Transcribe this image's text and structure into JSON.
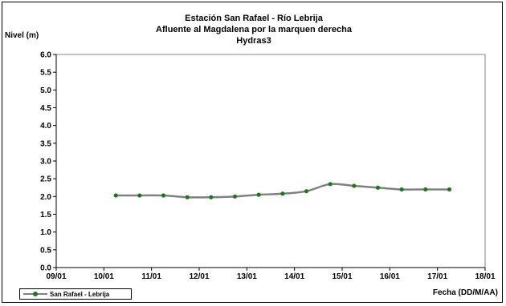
{
  "chart_data": {
    "type": "line",
    "title": "Estación San Rafael - Río Lebrija",
    "subtitle": "Afluente al Magdalena por la marquen derecha",
    "subtitle2": "Hydras3",
    "ylabel": "Nivel (m)",
    "xlabel": "Fecha (DD/M/AA)",
    "ylim": [
      0,
      6
    ],
    "y_ticks": [
      "0.0",
      "0.5",
      "1.0",
      "1.5",
      "2.0",
      "2.5",
      "3.0",
      "3.5",
      "4.0",
      "4.5",
      "5.0",
      "5.5",
      "6.0"
    ],
    "x_ticks": [
      "09/01",
      "10/01",
      "11/01",
      "12/01",
      "13/01",
      "14/01",
      "15/01",
      "16/01",
      "17/01",
      "18/01"
    ],
    "x_range_days": [
      0,
      9
    ],
    "grid": false,
    "legend_position": "bottom-left",
    "series": [
      {
        "name": "San Rafael - Lebrija",
        "color": "#808080",
        "marker_color": "#1a7a1a",
        "x": [
          1.25,
          1.75,
          2.25,
          2.75,
          3.25,
          3.75,
          4.25,
          4.75,
          5.25,
          5.75,
          6.25,
          6.75,
          7.25,
          7.75,
          8.25
        ],
        "values": [
          2.03,
          2.03,
          2.03,
          1.98,
          1.98,
          2.0,
          2.05,
          2.08,
          2.15,
          2.35,
          2.3,
          2.25,
          2.2,
          2.2,
          2.2
        ]
      }
    ]
  }
}
